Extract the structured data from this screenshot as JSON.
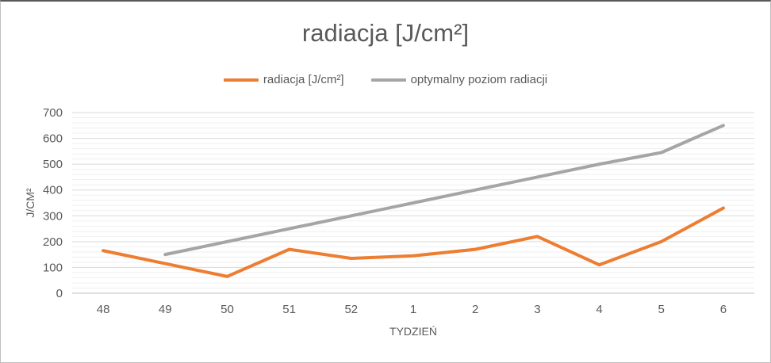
{
  "chart_data": {
    "type": "line",
    "title": "radiacja [J/cm²]",
    "xlabel": "TYDZIEŃ",
    "ylabel": "J/CM²",
    "categories": [
      "48",
      "49",
      "50",
      "51",
      "52",
      "1",
      "2",
      "3",
      "4",
      "5",
      "6"
    ],
    "series": [
      {
        "name": "radiacja [J/cm²]",
        "color": "#ED7D31",
        "values": [
          165,
          115,
          65,
          170,
          135,
          145,
          170,
          220,
          110,
          200,
          330
        ]
      },
      {
        "name": "optymalny poziom radiacji",
        "color": "#A5A5A5",
        "values": [
          null,
          150,
          200,
          250,
          300,
          350,
          400,
          450,
          500,
          545,
          650
        ]
      }
    ],
    "ylim": [
      0,
      700
    ],
    "major_unit": 100,
    "minor_unit": 20,
    "grid": "horizontal-major-and-minor",
    "legend_position": "top"
  },
  "colors": {
    "text": "#595959",
    "grid_major": "#d9d9d9",
    "grid_minor": "#efefef",
    "axis_line": "#bfbfbf"
  }
}
